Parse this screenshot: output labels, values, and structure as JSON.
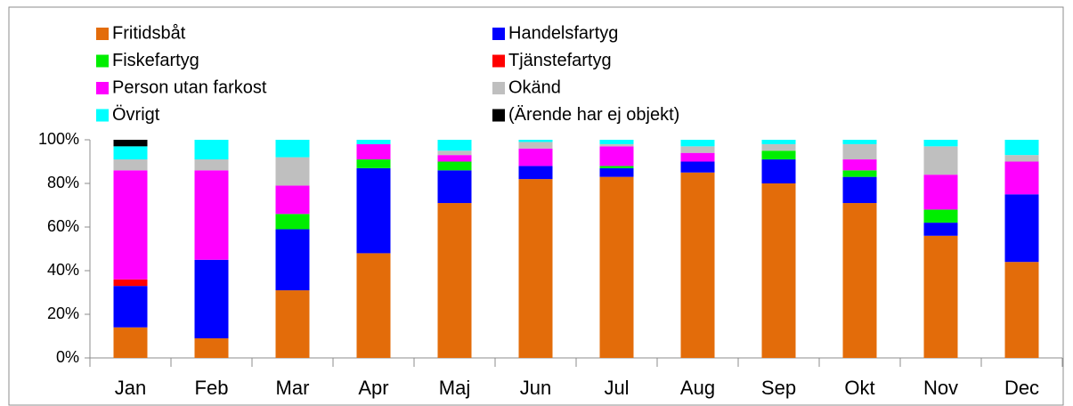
{
  "chart_data": {
    "type": "bar",
    "stacked": true,
    "categories": [
      "Jan",
      "Feb",
      "Mar",
      "Apr",
      "Maj",
      "Jun",
      "Jul",
      "Aug",
      "Sep",
      "Okt",
      "Nov",
      "Dec"
    ],
    "series": [
      {
        "name": "Fritidsbåt",
        "color": "#e36c0a",
        "values": [
          14,
          9,
          31,
          48,
          71,
          82,
          83,
          85,
          80,
          71,
          56,
          44
        ]
      },
      {
        "name": "Handelsfartyg",
        "color": "#0000ff",
        "values": [
          19,
          36,
          28,
          39,
          15,
          6,
          4,
          5,
          11,
          12,
          6,
          31
        ]
      },
      {
        "name": "Fiskefartyg",
        "color": "#00ee00",
        "values": [
          0,
          0,
          7,
          4,
          4,
          0,
          1,
          0,
          4,
          3,
          6,
          0
        ]
      },
      {
        "name": "Tjänstefartyg",
        "color": "#ff0000",
        "values": [
          3,
          0,
          0,
          0,
          0,
          0,
          0,
          0,
          0,
          0,
          0,
          0
        ]
      },
      {
        "name": "Person utan farkost",
        "color": "#ff00ff",
        "values": [
          50,
          41,
          13,
          7,
          3,
          8,
          9,
          4,
          0,
          5,
          16,
          15
        ]
      },
      {
        "name": "Okänd",
        "color": "#bfbfbf",
        "values": [
          5,
          5,
          13,
          0,
          2,
          3,
          1,
          3,
          3,
          7,
          13,
          3
        ]
      },
      {
        "name": "Övrigt",
        "color": "#00ffff",
        "values": [
          6,
          9,
          8,
          2,
          5,
          1,
          2,
          3,
          2,
          2,
          3,
          7
        ]
      },
      {
        "name": "(Ärende har ej objekt)",
        "color": "#000000",
        "values": [
          3,
          0,
          0,
          0,
          0,
          0,
          0,
          0,
          0,
          0,
          0,
          0
        ]
      }
    ],
    "ylim": [
      0,
      100
    ],
    "yticks": [
      {
        "value": 0,
        "label": "0%"
      },
      {
        "value": 20,
        "label": "20%"
      },
      {
        "value": 40,
        "label": "40%"
      },
      {
        "value": 60,
        "label": "60%"
      },
      {
        "value": 80,
        "label": "80%"
      },
      {
        "value": 100,
        "label": "100%"
      }
    ],
    "grid": false,
    "legend": "top"
  }
}
